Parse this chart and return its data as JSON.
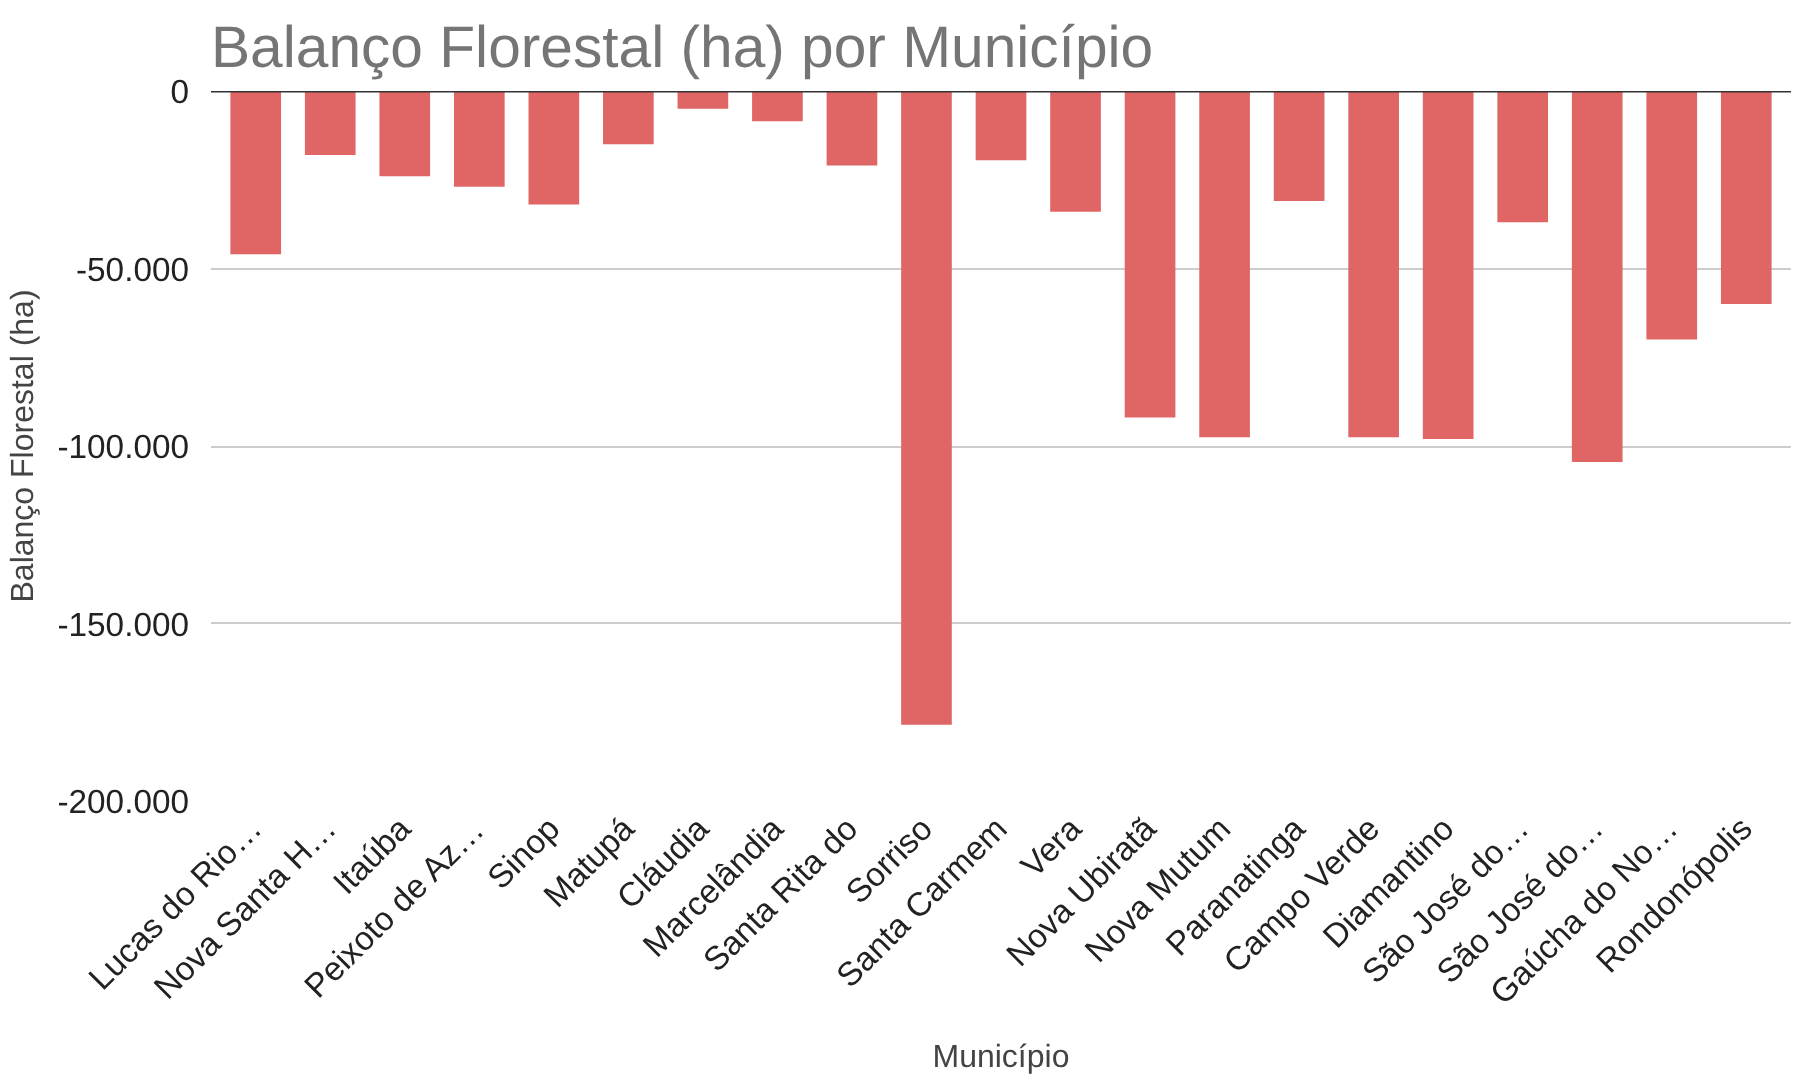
{
  "chart_data": {
    "type": "bar",
    "title": "Balanço Florestal (ha) por Município",
    "xlabel": "Município",
    "ylabel": "Balanço Florestal (ha)",
    "categories": [
      "Lucas do Rio…",
      "Nova Santa H…",
      "Itaúba",
      "Peixoto de Az…",
      "Sinop",
      "Matupá",
      "Cláudia",
      "Marcelândia",
      "Santa Rita do",
      "Sorriso",
      "Santa Carmem",
      "Vera",
      "Nova Ubiratã",
      "Nova Mutum",
      "Paranatinga",
      "Campo Verde",
      "Diamantino",
      "São José do…",
      "São José do…",
      "Gaúcha do No…",
      "Rondonópolis"
    ],
    "values": [
      -46000,
      -18000,
      -24000,
      -27000,
      -32000,
      -15000,
      -5000,
      -8500,
      -21000,
      -178500,
      -19500,
      -34000,
      -92000,
      -97500,
      -31000,
      -97500,
      -98000,
      -37000,
      -104500,
      -70000,
      -60000
    ],
    "color": "#e06666",
    "ylim": [
      -200000,
      0
    ],
    "yticks": [
      0,
      {
        "value": -50000,
        "label": "-50.000"
      },
      {
        "value": -100000,
        "label": "-100.000"
      },
      {
        "value": -150000,
        "label": "-150.000"
      },
      {
        "value": -200000,
        "label": "-200.000"
      }
    ],
    "grid": "y"
  }
}
